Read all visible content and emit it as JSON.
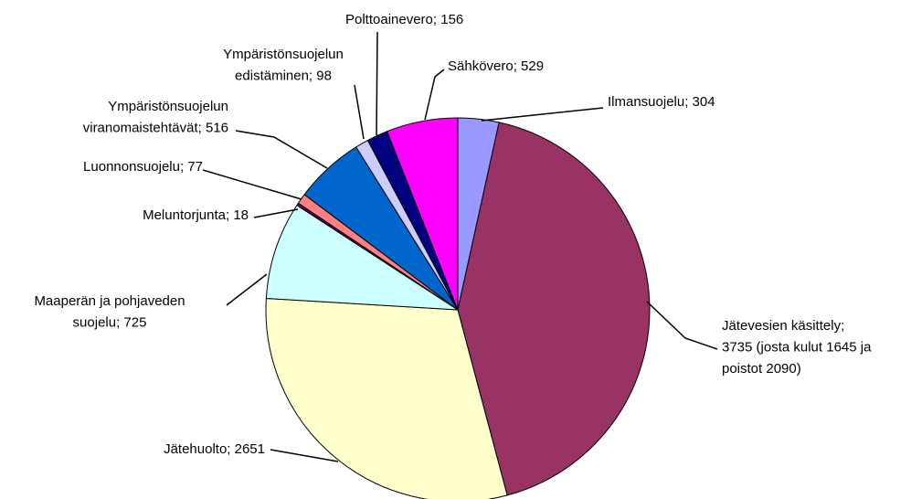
{
  "chart_data": {
    "type": "pie",
    "values": [
      304,
      3735,
      2651,
      725,
      18,
      77,
      516,
      98,
      156,
      529
    ],
    "value_labels": [
      [
        "Ilmansuojelu;  304"
      ],
      [
        "Jätevesien käsittely;",
        "3735 (josta kulut 1645 ja",
        "poistot 2090)"
      ],
      [
        "Jätehuolto;  2651"
      ],
      [
        "Maaperän  ja  pohjaveden",
        "suojelu;  725"
      ],
      [
        "Meluntorjunta;  18"
      ],
      [
        "Luonnonsuojelu;  77"
      ],
      [
        "Ympäristönsuojelun",
        "viranomaistehtävät;  516"
      ],
      [
        "Ympäristönsuojelun",
        "edistäminen;  98"
      ],
      [
        "Polttoainevero;  156"
      ],
      [
        "Sähkövero;  529"
      ]
    ],
    "colors": [
      "#9999ff",
      "#993366",
      "#ffffcc",
      "#ccffff",
      "#660066",
      "#ff8080",
      "#0066cc",
      "#ccccff",
      "#000080",
      "#ff00ff"
    ]
  }
}
